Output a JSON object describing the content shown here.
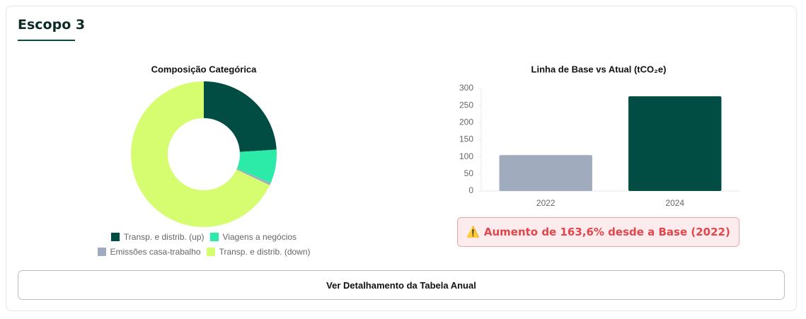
{
  "header": {
    "title": "Escopo 3"
  },
  "chart_data": [
    {
      "type": "donut",
      "title": "Composição Categórica",
      "categories": [
        "Transp. e distrib. (up)",
        "Viagens a negócios",
        "Emissões casa-trabalho",
        "Transp. e distrib. (down)"
      ],
      "values": [
        24,
        7.5,
        0.5,
        68
      ],
      "colors": [
        "#024d43",
        "#2ceaa8",
        "#a0abbd",
        "#d5fd6f"
      ]
    },
    {
      "type": "bar",
      "title": "Linha de Base vs Atual (tCO₂e)",
      "categories": [
        "2022",
        "2024"
      ],
      "values": [
        105,
        277
      ],
      "colors": [
        "#a0abbd",
        "#024d43"
      ],
      "ylim": [
        0,
        300
      ],
      "yticks": [
        0,
        50,
        100,
        150,
        200,
        250,
        300
      ]
    }
  ],
  "alert": {
    "text": "Aumento de 163,6% desde a Base (2022)"
  },
  "button": {
    "label": "Ver Detalhamento da Tabela Anual"
  }
}
